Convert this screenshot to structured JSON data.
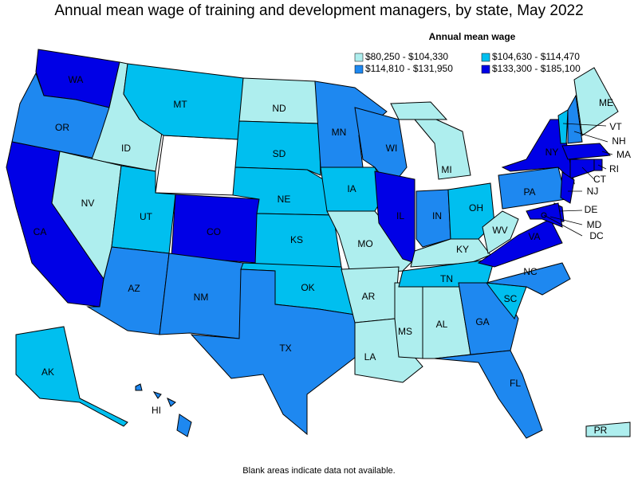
{
  "title": "Annual mean wage of training and development managers, by state, May 2022",
  "legend": {
    "title": "Annual mean wage",
    "items": [
      {
        "label": "$80,250 - $104,330",
        "color": "#aeeeee",
        "states": [
          "ID",
          "NV",
          "ND",
          "MO",
          "AR",
          "LA",
          "MS",
          "AL",
          "MI",
          "KY",
          "WV",
          "ME",
          "PR"
        ]
      },
      {
        "label": "$104,630 - $114,470",
        "color": "#00bfef",
        "states": [
          "MT",
          "UT",
          "SD",
          "NE",
          "KS",
          "OK",
          "IA",
          "OH",
          "TN",
          "SC",
          "VT",
          "AK"
        ]
      },
      {
        "label": "$114,810 - $131,950",
        "color": "#1e88f0",
        "states": [
          "OR",
          "AZ",
          "NM",
          "TX",
          "MN",
          "WI",
          "IN",
          "GA",
          "FL",
          "NC",
          "PA",
          "NH",
          "HI"
        ]
      },
      {
        "label": "$133,300 - $185,100",
        "color": "#0000e6",
        "states": [
          "WA",
          "CA",
          "CO",
          "IL",
          "VA",
          "NY",
          "MA",
          "RI",
          "CT",
          "NJ",
          "DE",
          "MD",
          "DC"
        ]
      }
    ]
  },
  "footnote": "Blank areas indicate data not available."
}
